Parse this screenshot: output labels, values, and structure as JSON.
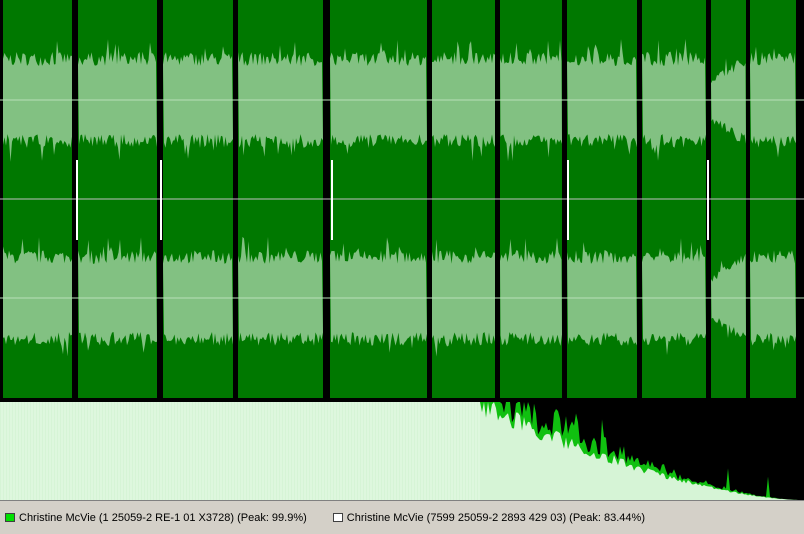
{
  "legend": [
    {
      "label": "Christine McVie (1 25059-2 RE-1 01 X3728) (Peak: 99.9%)",
      "color": "#00e000"
    },
    {
      "label": "Christine McVie (7599 25059-2 2893 429 03) (Peak: 83.44%)",
      "color": "#ffffff"
    }
  ]
}
